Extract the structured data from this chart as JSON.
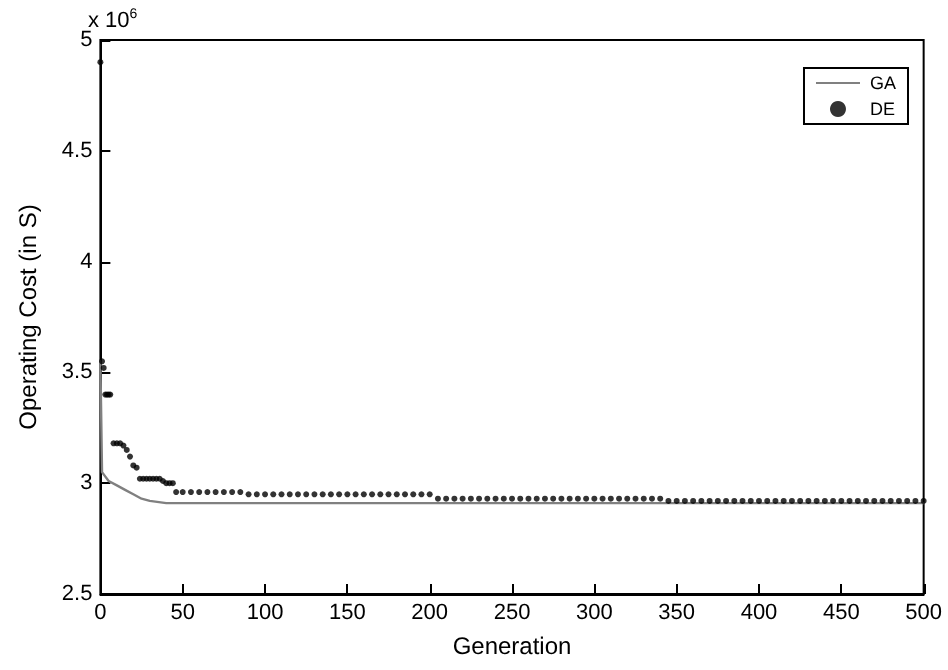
{
  "chart_data": {
    "type": "line",
    "xlabel": "Generation",
    "ylabel": "Operating Cost (in S)",
    "annotations": [
      "x 10$^{6}$"
    ],
    "xlim": [
      0,
      500
    ],
    "xticks": [
      0,
      50,
      100,
      150,
      200,
      250,
      300,
      350,
      400,
      450,
      500
    ],
    "ylim": [
      2.5,
      5
    ],
    "yticks": [
      2.5,
      3,
      3.5,
      4,
      4.5,
      5
    ],
    "grid": false,
    "legend": "top right",
    "series": [
      {
        "name": "GA",
        "color": "#808080",
        "line_style": "solid",
        "marker": "none",
        "x": [
          0,
          1,
          5,
          10,
          15,
          20,
          25,
          30,
          40,
          60,
          100,
          500
        ],
        "values": [
          3.55,
          3.05,
          3.01,
          2.99,
          2.97,
          2.95,
          2.93,
          2.92,
          2.91,
          2.91,
          2.91,
          2.91
        ]
      },
      {
        "name": "DE",
        "type": "scatter",
        "color": "#000000",
        "marker": "circle",
        "x": [
          0,
          1,
          2,
          3,
          4,
          5,
          6,
          8,
          10,
          12,
          14,
          16,
          18,
          20,
          22,
          24,
          26,
          28,
          30,
          32,
          34,
          36,
          38,
          40,
          42,
          44,
          46,
          50,
          55,
          60,
          65,
          70,
          75,
          80,
          85,
          90,
          95,
          100,
          105,
          110,
          115,
          120,
          125,
          130,
          135,
          140,
          145,
          150,
          155,
          160,
          165,
          170,
          175,
          180,
          185,
          190,
          195,
          200,
          205,
          210,
          215,
          220,
          225,
          230,
          235,
          240,
          245,
          250,
          255,
          260,
          265,
          270,
          275,
          280,
          285,
          290,
          295,
          300,
          305,
          310,
          315,
          320,
          325,
          330,
          335,
          340,
          345,
          350,
          355,
          360,
          365,
          370,
          375,
          380,
          385,
          390,
          395,
          400,
          405,
          410,
          415,
          420,
          425,
          430,
          435,
          440,
          445,
          450,
          455,
          460,
          465,
          470,
          475,
          480,
          485,
          490,
          495,
          500
        ],
        "values": [
          4.9,
          3.55,
          3.52,
          3.4,
          3.4,
          3.4,
          3.4,
          3.18,
          3.18,
          3.18,
          3.17,
          3.15,
          3.12,
          3.08,
          3.07,
          3.02,
          3.02,
          3.02,
          3.02,
          3.02,
          3.02,
          3.02,
          3.01,
          3.0,
          3.0,
          3.0,
          2.96,
          2.96,
          2.96,
          2.96,
          2.96,
          2.96,
          2.96,
          2.96,
          2.96,
          2.95,
          2.95,
          2.95,
          2.95,
          2.95,
          2.95,
          2.95,
          2.95,
          2.95,
          2.95,
          2.95,
          2.95,
          2.95,
          2.95,
          2.95,
          2.95,
          2.95,
          2.95,
          2.95,
          2.95,
          2.95,
          2.95,
          2.95,
          2.93,
          2.93,
          2.93,
          2.93,
          2.93,
          2.93,
          2.93,
          2.93,
          2.93,
          2.93,
          2.93,
          2.93,
          2.93,
          2.93,
          2.93,
          2.93,
          2.93,
          2.93,
          2.93,
          2.93,
          2.93,
          2.93,
          2.93,
          2.93,
          2.93,
          2.93,
          2.93,
          2.93,
          2.92,
          2.92,
          2.92,
          2.92,
          2.92,
          2.92,
          2.92,
          2.92,
          2.92,
          2.92,
          2.92,
          2.92,
          2.92,
          2.92,
          2.92,
          2.92,
          2.92,
          2.92,
          2.92,
          2.92,
          2.92,
          2.92,
          2.92,
          2.92,
          2.92,
          2.92,
          2.92,
          2.92,
          2.92,
          2.92,
          2.92,
          2.92
        ]
      }
    ]
  }
}
